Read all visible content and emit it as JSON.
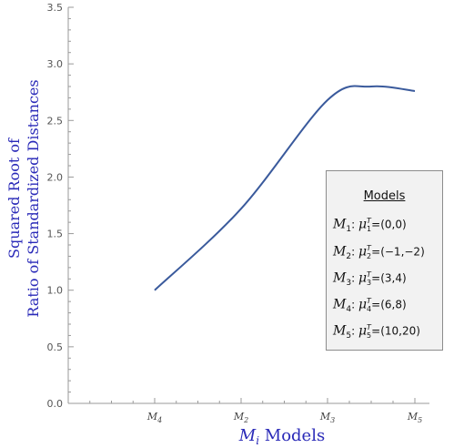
{
  "chart_data": {
    "type": "line",
    "categories": [
      "M4",
      "M2",
      "M3",
      "M5"
    ],
    "category_labels": [
      {
        "base": "M",
        "sub": "4"
      },
      {
        "base": "M",
        "sub": "2"
      },
      {
        "base": "M",
        "sub": "3"
      },
      {
        "base": "M",
        "sub": "5"
      }
    ],
    "values": [
      1.0,
      1.72,
      2.68,
      2.76
    ],
    "curve_peak": {
      "x_position": 2.5,
      "y": 2.8
    },
    "line_color": "#3a5a9c",
    "axis_title_color": "#2a2ab8",
    "yticks": [
      "0.0",
      "0.5",
      "1.0",
      "1.5",
      "2.0",
      "2.5",
      "3.0",
      "3.5"
    ],
    "ylim": [
      0,
      3.5
    ],
    "ylabel_lines": [
      "Squared Root of",
      "Ratio of Standardized Distances"
    ],
    "xlabel": {
      "var": "M",
      "sub": "i",
      "rest": " Models"
    },
    "grid": false,
    "legend": {
      "placement": "right",
      "title": "Models",
      "entries": [
        {
          "m": "M",
          "m_sub": "1",
          "mu": "μ",
          "mu_sup": "T",
          "mu_sub": "1",
          "value": "=(0,0)"
        },
        {
          "m": "M",
          "m_sub": "2",
          "mu": "μ",
          "mu_sup": "T",
          "mu_sub": "2",
          "value": "=(−1,−2)"
        },
        {
          "m": "M",
          "m_sub": "3",
          "mu": "μ",
          "mu_sup": "T",
          "mu_sub": "3",
          "value": "=(3,4)"
        },
        {
          "m": "M",
          "m_sub": "4",
          "mu": "μ",
          "mu_sup": "T",
          "mu_sub": "4",
          "value": "=(6,8)"
        },
        {
          "m": "M",
          "m_sub": "5",
          "mu": "μ",
          "mu_sup": "T",
          "mu_sub": "5",
          "value": "=(10,20)"
        }
      ]
    }
  }
}
